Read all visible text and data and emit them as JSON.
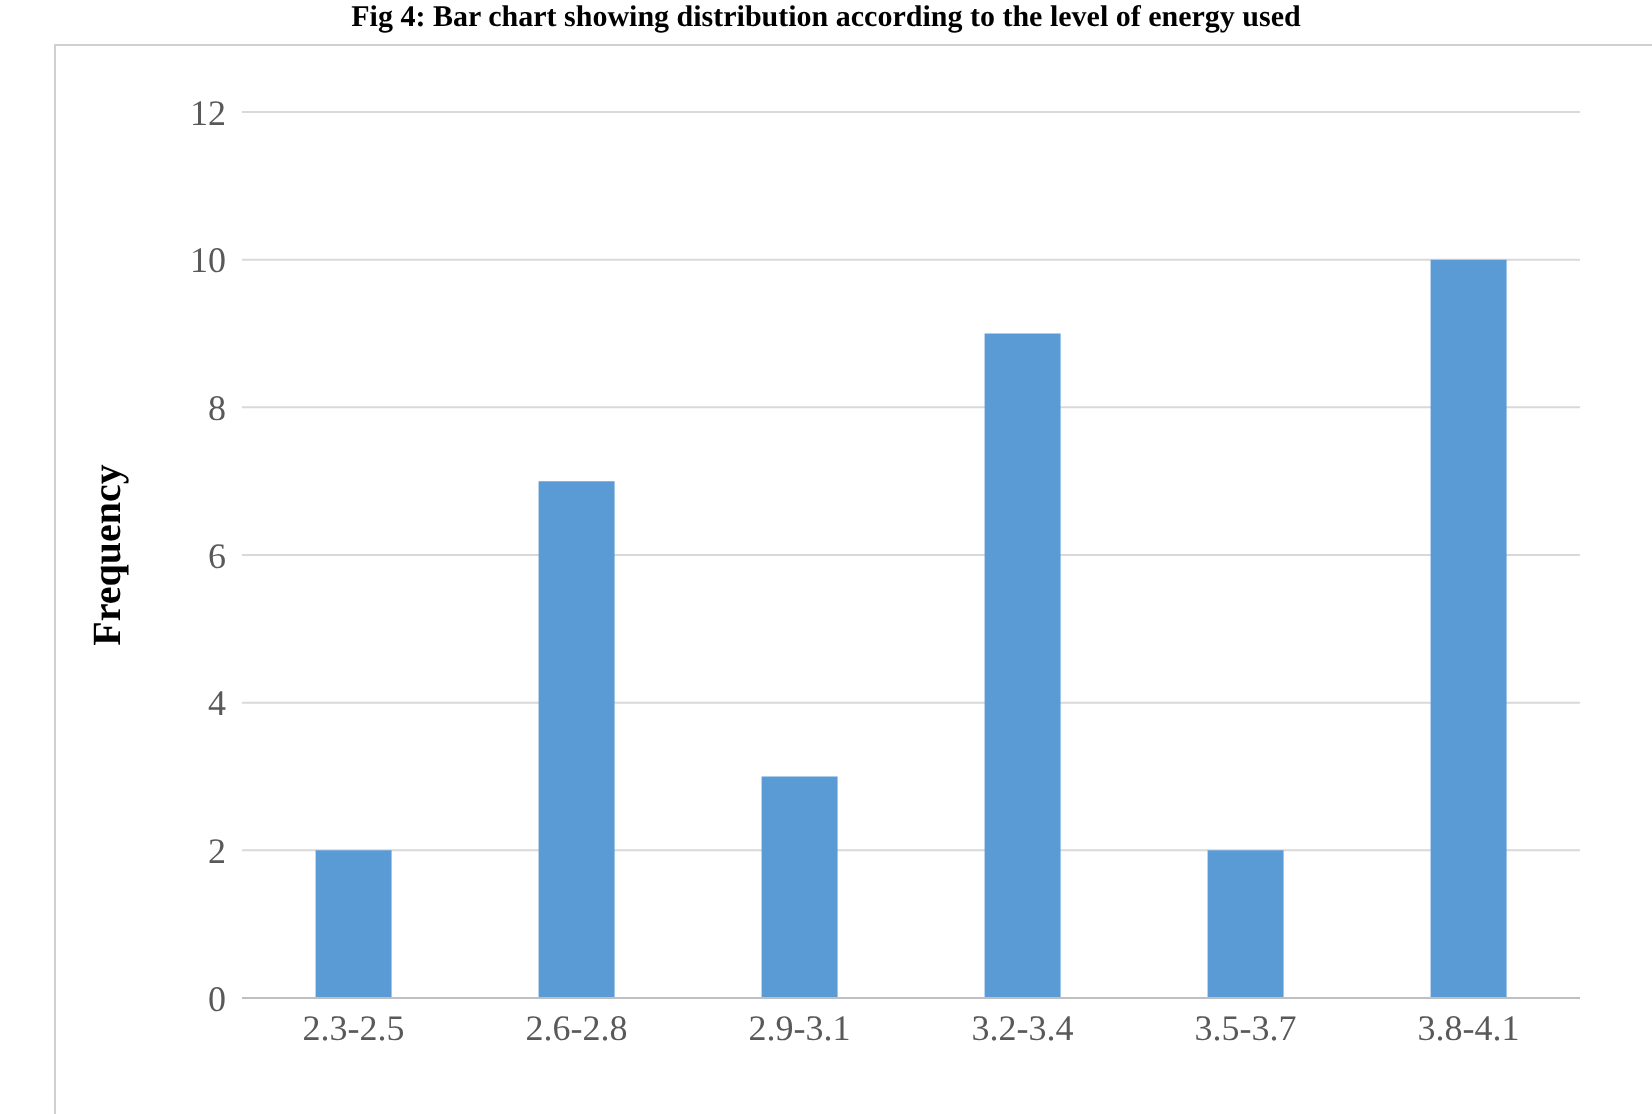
{
  "chart_data": {
    "type": "bar",
    "title": "Fig 4: Bar chart showing distribution according to the level of energy used",
    "ylabel": "Frequency",
    "categories": [
      "2.3-2.5",
      "2.6-2.8",
      "2.9-3.1",
      "3.2-3.4",
      "3.5-3.7",
      "3.8-4.1"
    ],
    "values": [
      2,
      7,
      3,
      9,
      2,
      10
    ],
    "color": "#5b9bd5",
    "ylim": [
      0,
      12
    ],
    "yticks": [
      0,
      2,
      4,
      6,
      8,
      10,
      12
    ],
    "grid": "y"
  }
}
